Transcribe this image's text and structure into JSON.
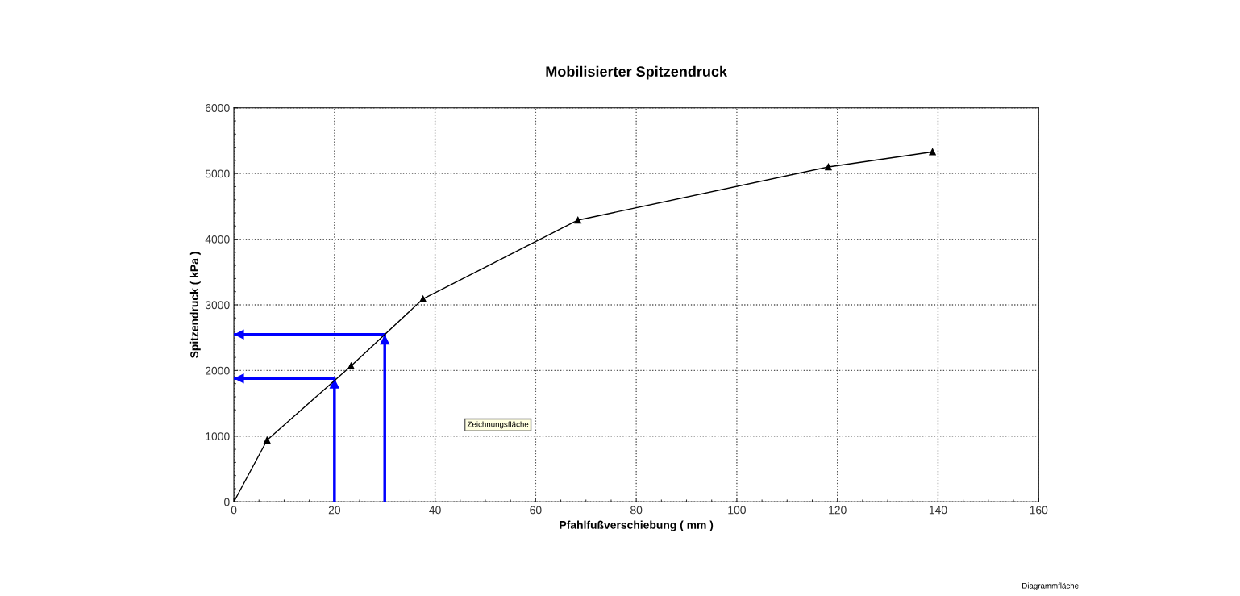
{
  "chart_data": {
    "type": "line",
    "title": "Mobilisierter Spitzendruck",
    "xlabel": "Pfahlfußverschiebung ( mm )",
    "ylabel": "Spitzendruck ( kPa )",
    "xlim": [
      0,
      160
    ],
    "xticks": [
      0,
      20,
      40,
      60,
      80,
      100,
      120,
      140,
      160
    ],
    "ylim": [
      0,
      6000
    ],
    "yticks": [
      0,
      1000,
      2000,
      3000,
      4000,
      5000,
      6000
    ],
    "grid": true,
    "line_style": "solid",
    "series": [
      {
        "color": "#000000",
        "marker": "triangle",
        "x": [
          0,
          6.6,
          23.3,
          37.6,
          68.4,
          118.2,
          138.9
        ],
        "values": [
          0,
          940,
          2070,
          3090,
          4290,
          5100,
          5330
        ]
      },
      {
        "color": "#0000ff",
        "marker": "none",
        "x": [
          20,
          20,
          0
        ],
        "values": [
          0,
          1880,
          1880
        ]
      },
      {
        "color": "#0000ff",
        "marker": "none",
        "x": [
          30,
          30,
          0
        ],
        "values": [
          0,
          2550,
          2550
        ]
      }
    ],
    "annotations": [
      "Zeichnungsfläche",
      "Diagrammfläche"
    ]
  }
}
